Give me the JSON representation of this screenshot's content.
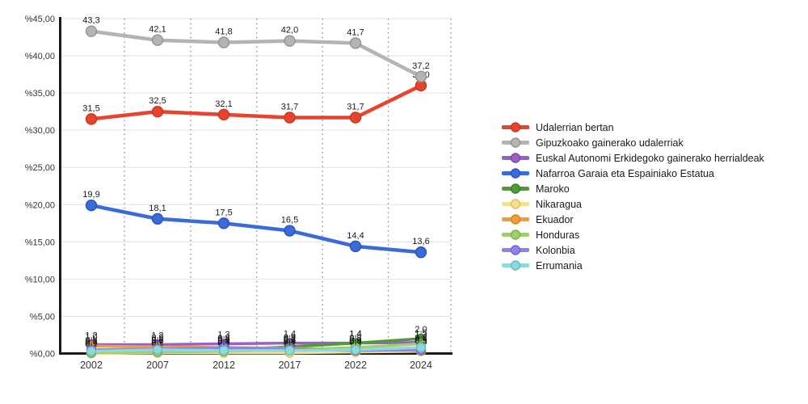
{
  "chart_data": {
    "type": "line",
    "title": "",
    "xlabel": "",
    "ylabel": "",
    "x_categories": [
      "2002",
      "2007",
      "2012",
      "2017",
      "2022",
      "2024"
    ],
    "y_axis": {
      "min": 0,
      "max": 45,
      "step": 5,
      "tick_labels": [
        "%45,00",
        "%40,00",
        "%35,00",
        "%30,00",
        "%25,00",
        "%20,00",
        "%15,00",
        "%10,00",
        "%5,00",
        "%0,00"
      ],
      "decimal_separator": ","
    },
    "grid": {
      "horizontal_lines": true,
      "vertical_dotted_between_categories": true,
      "legend_position": "right"
    },
    "series": [
      {
        "name": "Udalerrian bertan",
        "color": "#E8432D",
        "marker_stroke": "#C23A24",
        "major": true,
        "values": [
          31.5,
          32.5,
          32.1,
          31.7,
          31.7,
          36.0
        ]
      },
      {
        "name": "Gipuzkoako gainerako udalerriak",
        "color": "#B4B4B4",
        "marker_stroke": "#939393",
        "major": true,
        "values": [
          43.3,
          42.1,
          41.8,
          42.0,
          41.7,
          37.2
        ]
      },
      {
        "name": "Euskal Autonomi Erkidegoko gainerako herrialdeak",
        "color": "#9B5FC8",
        "marker_stroke": "#7C41AC",
        "major": false,
        "values": [
          1.2,
          1.2,
          1.3,
          1.4,
          1.4,
          1.5
        ]
      },
      {
        "name": "Nafarroa Garaia eta Espainiako Estatua",
        "color": "#3A6BD6",
        "marker_stroke": "#2A54BA",
        "major": true,
        "values": [
          19.9,
          18.1,
          17.5,
          16.5,
          14.4,
          13.6
        ]
      },
      {
        "name": "Maroko",
        "color": "#4F9B37",
        "marker_stroke": "#3C7D28",
        "major": false,
        "values": [
          0.1,
          0.2,
          0.5,
          0.9,
          1.4,
          2.0
        ]
      },
      {
        "name": "Nikaragua",
        "color": "#F6E08C",
        "marker_stroke": "#DFBE5E",
        "major": false,
        "values": [
          0.0,
          0.1,
          0.1,
          0.1,
          0.2,
          0.3
        ]
      },
      {
        "name": "Ekuador",
        "color": "#F19D3B",
        "marker_stroke": "#D8821E",
        "major": false,
        "values": [
          1.0,
          0.9,
          0.8,
          0.7,
          0.5,
          0.4
        ]
      },
      {
        "name": "Honduras",
        "color": "#9FCE6B",
        "marker_stroke": "#7FB248",
        "major": false,
        "values": [
          0.1,
          0.2,
          0.3,
          0.5,
          0.8,
          1.3
        ]
      },
      {
        "name": "Kolonbia",
        "color": "#8C85E8",
        "marker_stroke": "#6E65D4",
        "major": false,
        "values": [
          0.5,
          0.6,
          0.8,
          0.6,
          0.4,
          0.5
        ]
      },
      {
        "name": "Errumania",
        "color": "#90D8DA",
        "marker_stroke": "#65BEC2",
        "major": false,
        "values": [
          0.3,
          0.5,
          0.4,
          0.4,
          0.5,
          0.8
        ]
      }
    ],
    "style_colors": {
      "axis": "#1a1a1a",
      "grid_line": "#e2e2e2",
      "dotted_line": "#8f8f8f",
      "tick_text": "#333333",
      "data_label_text": "#1a1a1a",
      "background": "#ffffff"
    }
  }
}
